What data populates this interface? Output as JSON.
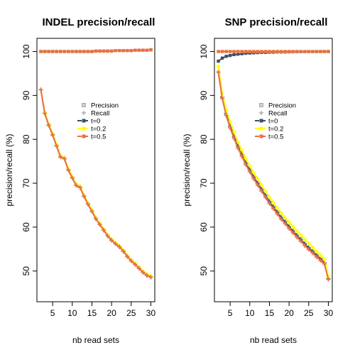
{
  "chart_data": [
    {
      "type": "line",
      "title": "INDEL precision/recall",
      "xlabel": "nb read sets",
      "ylabel": "precision/recall (%)",
      "xlim": [
        1,
        31
      ],
      "ylim": [
        43,
        103
      ],
      "xticks": [
        5,
        10,
        15,
        20,
        25,
        30
      ],
      "yticks": [
        50,
        60,
        70,
        80,
        90,
        100
      ],
      "x": [
        2,
        3,
        4,
        5,
        6,
        7,
        8,
        9,
        10,
        11,
        12,
        13,
        14,
        15,
        16,
        17,
        18,
        19,
        20,
        21,
        22,
        23,
        24,
        25,
        26,
        27,
        28,
        29,
        30
      ],
      "legend": {
        "placement": "center-right",
        "entries": [
          {
            "label": "Precision",
            "marker": "square-open",
            "color": "#aaaaaa"
          },
          {
            "label": "Recall",
            "marker": "plus",
            "color": "#aaaaaa"
          },
          {
            "label": "t=0",
            "marker": "square-line",
            "color": "#3d5068"
          },
          {
            "label": "t=0.2",
            "marker": "square-line",
            "color": "#ffff00"
          },
          {
            "label": "t=0.5",
            "marker": "square-line",
            "color": "#e8704a"
          }
        ]
      },
      "series": [
        {
          "name": "Precision t=0",
          "color": "#3d5068",
          "marker": "square",
          "values": [
            100,
            100,
            100,
            100,
            100,
            100,
            100,
            100,
            100,
            100,
            100,
            100,
            100,
            100,
            100.1,
            100.1,
            100.1,
            100.1,
            100.1,
            100.2,
            100.2,
            100.2,
            100.2,
            100.2,
            100.3,
            100.3,
            100.3,
            100.3,
            100.4
          ]
        },
        {
          "name": "Precision t=0.2",
          "color": "#ffff00",
          "marker": "square",
          "values": [
            100,
            100,
            100,
            100,
            100,
            100,
            100,
            100,
            100,
            100,
            100,
            100,
            100,
            100,
            100.1,
            100.1,
            100.1,
            100.1,
            100.1,
            100.2,
            100.2,
            100.2,
            100.2,
            100.2,
            100.3,
            100.3,
            100.3,
            100.3,
            100.4
          ]
        },
        {
          "name": "Precision t=0.5",
          "color": "#e8704a",
          "marker": "square",
          "values": [
            100,
            100,
            100,
            100,
            100,
            100,
            100,
            100,
            100,
            100,
            100,
            100,
            100,
            100,
            100.1,
            100.1,
            100.1,
            100.1,
            100.1,
            100.2,
            100.2,
            100.2,
            100.2,
            100.2,
            100.3,
            100.3,
            100.3,
            100.3,
            100.4
          ]
        },
        {
          "name": "Recall t=0",
          "color": "#3d5068",
          "marker": "plus",
          "values": [
            91.3,
            85.9,
            83.2,
            81,
            78.5,
            76,
            75.6,
            73,
            71.2,
            69.5,
            69,
            67,
            65.2,
            63.6,
            61.9,
            60.6,
            59.3,
            58,
            57,
            56.2,
            55.5,
            54.5,
            53.3,
            52.3,
            51.5,
            50.6,
            49.7,
            49,
            48.6
          ]
        },
        {
          "name": "Recall t=0.2",
          "color": "#ffff00",
          "marker": "plus",
          "values": [
            91.3,
            86.2,
            83.5,
            81.3,
            78.8,
            76.3,
            75.8,
            73.3,
            71.5,
            69.8,
            69.3,
            67.3,
            65.5,
            63.9,
            62.2,
            60.9,
            59.6,
            58.3,
            57.3,
            56.5,
            55.8,
            54.8,
            53.6,
            52.6,
            51.8,
            50.9,
            50,
            49.3,
            48.9
          ]
        },
        {
          "name": "Recall t=0.5",
          "color": "#e8704a",
          "marker": "plus",
          "values": [
            91.3,
            85.9,
            83.2,
            81,
            78.5,
            76,
            75.6,
            73,
            71.2,
            69.5,
            69,
            67,
            65.2,
            63.6,
            61.9,
            60.6,
            59.3,
            58,
            57,
            56.2,
            55.5,
            54.5,
            53.3,
            52.3,
            51.5,
            50.6,
            49.7,
            49,
            48.6
          ]
        }
      ]
    },
    {
      "type": "line",
      "title": "SNP precision/recall",
      "xlabel": "nb read sets",
      "ylabel": "precision/recall (%)",
      "xlim": [
        1,
        31
      ],
      "ylim": [
        43,
        103
      ],
      "xticks": [
        5,
        10,
        15,
        20,
        25,
        30
      ],
      "yticks": [
        50,
        60,
        70,
        80,
        90,
        100
      ],
      "x": [
        2,
        3,
        4,
        5,
        6,
        7,
        8,
        9,
        10,
        11,
        12,
        13,
        14,
        15,
        16,
        17,
        18,
        19,
        20,
        21,
        22,
        23,
        24,
        25,
        26,
        27,
        28,
        29,
        30
      ],
      "legend": {
        "placement": "center-right",
        "entries": [
          {
            "label": "Precision",
            "marker": "square-open",
            "color": "#aaaaaa"
          },
          {
            "label": "Recall",
            "marker": "plus",
            "color": "#aaaaaa"
          },
          {
            "label": "t=0",
            "marker": "square-line",
            "color": "#3d5068"
          },
          {
            "label": "t=0.2",
            "marker": "square-line",
            "color": "#ffff00"
          },
          {
            "label": "t=0.5",
            "marker": "square-line",
            "color": "#e8704a"
          }
        ]
      },
      "series": [
        {
          "name": "Precision t=0",
          "color": "#3d5068",
          "marker": "square",
          "values": [
            97.8,
            98.5,
            98.9,
            99.1,
            99.3,
            99.4,
            99.5,
            99.6,
            99.65,
            99.7,
            99.75,
            99.8,
            99.8,
            99.85,
            99.85,
            99.9,
            99.9,
            99.9,
            99.92,
            99.94,
            99.95,
            99.96,
            99.97,
            99.97,
            99.98,
            99.98,
            99.99,
            99.99,
            100
          ]
        },
        {
          "name": "Precision t=0.2",
          "color": "#ffff00",
          "marker": "square",
          "values": [
            100,
            100,
            100,
            100,
            100,
            100,
            100,
            100,
            100,
            100,
            100,
            100,
            100,
            100,
            100,
            100,
            100,
            100,
            100,
            100,
            100,
            100,
            100,
            100,
            100,
            100,
            100,
            100,
            100
          ]
        },
        {
          "name": "Precision t=0.5",
          "color": "#e8704a",
          "marker": "square",
          "values": [
            100,
            100,
            100,
            100,
            100,
            100,
            100,
            100,
            100,
            100,
            100,
            100,
            100,
            100,
            100,
            100,
            100,
            100,
            100,
            100,
            100,
            100,
            100,
            100,
            100,
            100,
            100,
            100,
            100
          ]
        },
        {
          "name": "Recall t=0",
          "color": "#3d5068",
          "marker": "plus",
          "values": [
            95.3,
            89.6,
            85.8,
            83,
            80.6,
            78.4,
            76.5,
            74.6,
            73,
            71.4,
            70,
            68.6,
            67.2,
            65.8,
            64.6,
            63.4,
            62.2,
            61.2,
            60.1,
            59.1,
            58.1,
            57.2,
            56.2,
            55.3,
            54.5,
            53.6,
            52.8,
            51.9,
            48.2
          ]
        },
        {
          "name": "Recall t=0.2",
          "color": "#ffff00",
          "marker": "plus",
          "values": [
            96.6,
            90.5,
            86.7,
            84,
            81.6,
            79.4,
            77.5,
            75.6,
            74,
            72.4,
            71,
            69.6,
            68.2,
            66.8,
            65.6,
            64.4,
            63.2,
            62.2,
            61.1,
            60.1,
            59.1,
            58.2,
            57.2,
            56.3,
            55.4,
            54.5,
            53.6,
            52.7,
            48.8
          ]
        },
        {
          "name": "Recall t=0.5",
          "color": "#e8704a",
          "marker": "plus",
          "values": [
            95.3,
            89.3,
            85.4,
            82.6,
            80.2,
            78,
            76.1,
            74.2,
            72.6,
            71,
            69.6,
            68.2,
            66.8,
            65.4,
            64.2,
            63,
            61.8,
            60.8,
            59.7,
            58.7,
            57.7,
            56.8,
            55.8,
            54.9,
            54.1,
            53.2,
            52.4,
            51.6,
            48.1
          ]
        }
      ]
    }
  ]
}
